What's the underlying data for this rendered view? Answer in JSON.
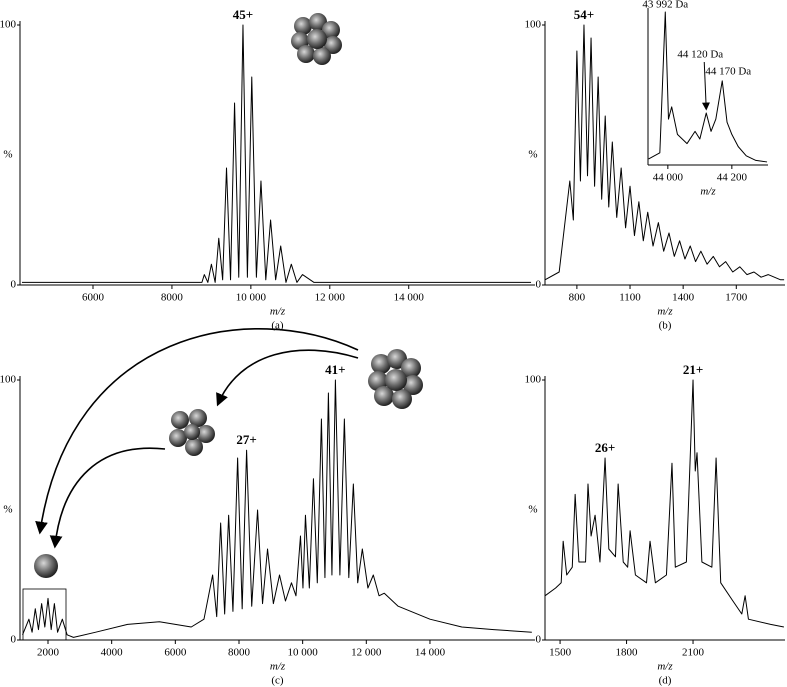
{
  "chart_data": [
    {
      "type": "line",
      "caption": "(a)",
      "xlabel": "m/z",
      "ylabel": "%",
      "color": "#000000",
      "xlim": [
        4150,
        17200
      ],
      "ylim": [
        0,
        100
      ],
      "yticks": [
        0,
        100
      ],
      "xticks": [
        6000,
        8000,
        {
          "value": 10000,
          "label": "10 000"
        },
        {
          "value": 12000,
          "label": "12 000"
        },
        {
          "value": 14000,
          "label": "14 000"
        }
      ],
      "x": [
        4200,
        6000,
        8000,
        8760,
        8820,
        8910,
        9000,
        9095,
        9187,
        9285,
        9383,
        9485,
        9587,
        9693,
        9800,
        9912,
        10023,
        10140,
        10256,
        10378,
        10500,
        10628,
        10756,
        10890,
        11025,
        11166,
        11308,
        11600,
        13000,
        17100
      ],
      "values": [
        1,
        1,
        1,
        1,
        4,
        1,
        8,
        1,
        18,
        2,
        45,
        2,
        70,
        3,
        100,
        3,
        80,
        3,
        40,
        2,
        25,
        2,
        15,
        1,
        8,
        1,
        4,
        1,
        1,
        1
      ],
      "annotations": [
        {
          "text": "45+",
          "x": 9800,
          "y": 100
        }
      ]
    },
    {
      "type": "line",
      "caption": "(b)",
      "xlabel": "m/z",
      "ylabel": "%",
      "color": "#000000",
      "xlim": [
        620,
        1975
      ],
      "ylim": [
        0,
        100
      ],
      "yticks": [
        0,
        100
      ],
      "xticks": [
        800,
        1100,
        1400,
        1700
      ],
      "x": [
        620,
        700,
        760,
        780,
        800,
        820,
        840,
        860,
        880,
        900,
        920,
        940,
        960,
        980,
        1000,
        1025,
        1050,
        1075,
        1100,
        1125,
        1150,
        1175,
        1200,
        1230,
        1260,
        1290,
        1320,
        1350,
        1380,
        1410,
        1440,
        1470,
        1500,
        1535,
        1570,
        1605,
        1640,
        1680,
        1720,
        1760,
        1800,
        1840,
        1880,
        1950,
        1970
      ],
      "values": [
        2,
        5,
        40,
        25,
        90,
        40,
        100,
        42,
        95,
        38,
        80,
        33,
        65,
        30,
        55,
        26,
        45,
        22,
        38,
        19,
        32,
        17,
        28,
        15,
        24,
        13,
        20,
        11,
        17,
        10,
        15,
        9,
        13,
        8,
        11,
        7,
        9,
        5,
        7,
        4,
        5,
        3,
        4,
        2,
        2
      ],
      "annotations": [
        {
          "text": "54+",
          "x": 840,
          "y": 100
        }
      ]
    },
    {
      "type": "line",
      "xlabel": "m/z",
      "color": "#000000",
      "xlim": [
        43938,
        44313
      ],
      "ylim": [
        0,
        100
      ],
      "xticks": [
        {
          "value": 44000,
          "label": "44 000"
        },
        {
          "value": 44200,
          "label": "44 200"
        }
      ],
      "x": [
        43940,
        43975,
        43992,
        44002,
        44012,
        44030,
        44060,
        44085,
        44100,
        44120,
        44135,
        44150,
        44170,
        44185,
        44200,
        44220,
        44245,
        44275,
        44310
      ],
      "values": [
        4,
        8,
        100,
        30,
        38,
        20,
        14,
        22,
        17,
        34,
        22,
        30,
        55,
        28,
        20,
        12,
        6,
        3,
        2
      ],
      "annotations": [
        {
          "text": "43 992 Da",
          "x": 43992,
          "y": 100
        },
        {
          "text": "44 120 Da",
          "x": 44120,
          "y": 34
        },
        {
          "text": "44 170 Da",
          "x": 44170,
          "y": 55
        }
      ]
    },
    {
      "type": "line",
      "caption": "(c)",
      "xlabel": "m/z",
      "ylabel": "%",
      "color": "#000000",
      "xlim": [
        1120,
        17300
      ],
      "ylim": [
        0,
        100
      ],
      "yticks": [
        0,
        100
      ],
      "xticks": [
        2000,
        4000,
        6000,
        8000,
        {
          "value": 10000,
          "label": "10 000"
        },
        {
          "value": 12000,
          "label": "12 000"
        },
        {
          "value": 14000,
          "label": "14 000"
        }
      ],
      "x": [
        1200,
        1400,
        1500,
        1600,
        1700,
        1800,
        1900,
        2000,
        2100,
        2200,
        2300,
        2450,
        2600,
        2800,
        3500,
        4500,
        5500,
        6500,
        6900,
        7172,
        7300,
        7424,
        7550,
        7675,
        7810,
        7957,
        8100,
        8239,
        8400,
        8584,
        8740,
        8897,
        9080,
        9273,
        9460,
        9649,
        9790,
        9932,
        10010,
        10088,
        10210,
        10339,
        10460,
        10590,
        10700,
        10809,
        10920,
        11029,
        11170,
        11311,
        11450,
        11593,
        11730,
        11875,
        12050,
        12220,
        12400,
        12565,
        13000,
        14000,
        15000,
        16000,
        17200
      ],
      "values": [
        2,
        8,
        3,
        12,
        4,
        14,
        5,
        16,
        4,
        14,
        3,
        8,
        2,
        1,
        3,
        6,
        7,
        5,
        8,
        25,
        9,
        45,
        10,
        48,
        11,
        70,
        12,
        73,
        13,
        50,
        14,
        35,
        14,
        25,
        15,
        22,
        17,
        40,
        20,
        48,
        20,
        62,
        22,
        85,
        24,
        95,
        25,
        100,
        25,
        85,
        24,
        60,
        22,
        35,
        20,
        25,
        17,
        18,
        13,
        8,
        5,
        4,
        3
      ],
      "annotations": [
        {
          "text": "27+",
          "x": 8239,
          "y": 73
        },
        {
          "text": "41+",
          "x": 11029,
          "y": 100
        }
      ]
    },
    {
      "type": "line",
      "caption": "(d)",
      "xlabel": "m/z",
      "ylabel": "%",
      "color": "#000000",
      "xlim": [
        1432,
        2515
      ],
      "ylim": [
        0,
        100
      ],
      "yticks": [
        0,
        100
      ],
      "xticks": [
        1500,
        1800,
        2100
      ],
      "x": [
        1432,
        1480,
        1505,
        1514,
        1530,
        1555,
        1568,
        1585,
        1615,
        1626,
        1640,
        1658,
        1680,
        1703,
        1720,
        1750,
        1762,
        1785,
        1805,
        1816,
        1840,
        1890,
        1906,
        1930,
        1980,
        2005,
        2020,
        2070,
        2100,
        2110,
        2118,
        2140,
        2185,
        2204,
        2225,
        2280,
        2320,
        2335,
        2350,
        2450,
        2510
      ],
      "values": [
        17,
        20,
        22,
        38,
        25,
        28,
        56,
        30,
        30,
        60,
        40,
        48,
        30,
        70,
        35,
        32,
        60,
        30,
        28,
        42,
        25,
        22,
        38,
        22,
        25,
        68,
        28,
        30,
        100,
        65,
        72,
        30,
        28,
        70,
        22,
        15,
        10,
        17,
        8,
        6,
        5
      ],
      "annotations": [
        {
          "text": "26+",
          "x": 1703,
          "y": 70
        },
        {
          "text": "21+",
          "x": 2100,
          "y": 100
        }
      ]
    }
  ]
}
